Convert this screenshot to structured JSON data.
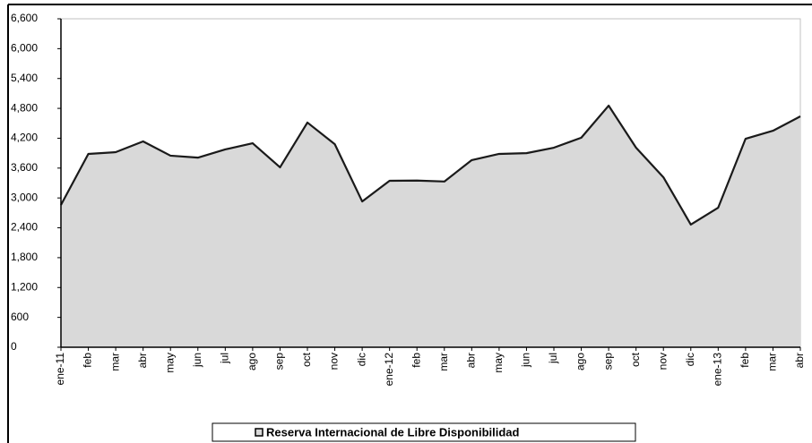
{
  "chart_data": {
    "type": "area",
    "categories": [
      "ene-11",
      "feb",
      "mar",
      "abr",
      "may",
      "jun",
      "jul",
      "ago",
      "sep",
      "oct",
      "nov",
      "dic",
      "ene-12",
      "feb",
      "mar",
      "abr",
      "may",
      "jun",
      "jul",
      "ago",
      "sep",
      "oct",
      "nov",
      "dic",
      "ene-13",
      "feb",
      "mar",
      "abr"
    ],
    "series": [
      {
        "name": "Reserva Internacional de Libre Disponibilidad",
        "color": "#d9d9d9",
        "values": [
          2860,
          3885,
          3920,
          4136,
          3850,
          3810,
          3975,
          4100,
          3615,
          4515,
          4080,
          2930,
          3345,
          3350,
          3330,
          3760,
          3885,
          3900,
          4010,
          4210,
          4855,
          4010,
          3415,
          2465,
          2805,
          4190,
          4350,
          4640
        ]
      }
    ],
    "ylim": [
      0,
      6600
    ],
    "yticks": [
      0,
      600,
      {
        "value": 1200,
        "label": "1,200"
      },
      {
        "value": 1800,
        "label": "1,800"
      },
      {
        "value": 2400,
        "label": "2,400"
      },
      {
        "value": 3000,
        "label": "3,000"
      },
      {
        "value": 3600,
        "label": "3,600"
      },
      {
        "value": 4200,
        "label": "4,200"
      },
      {
        "value": 4800,
        "label": "4,800"
      },
      {
        "value": 5400,
        "label": "5,400"
      },
      {
        "value": 6000,
        "label": "6,000"
      },
      {
        "value": 6600,
        "label": "6,600"
      }
    ],
    "legend": "bottom"
  }
}
